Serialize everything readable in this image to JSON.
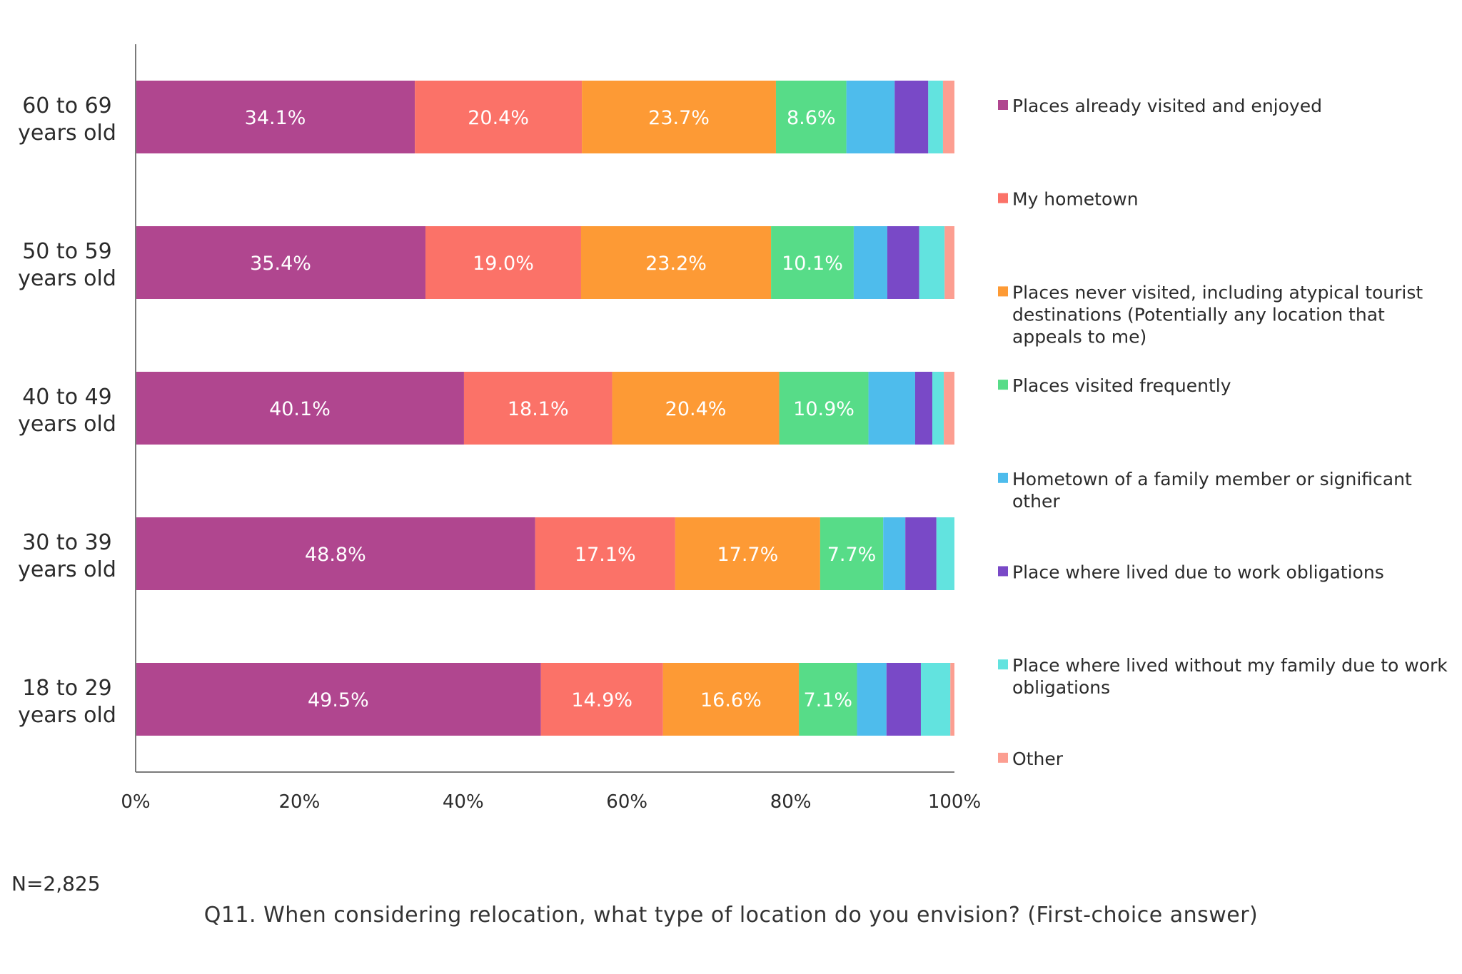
{
  "chart_data": {
    "type": "bar",
    "orientation": "horizontal",
    "stacked": true,
    "categories": [
      "60 to 69\nyears old",
      "50 to 59\nyears old",
      "40 to 49\nyears old",
      "30 to 39\nyears old",
      "18 to 29\nyears old"
    ],
    "series": [
      {
        "name": "Places already visited and enjoyed",
        "color": "#b0468f",
        "values": [
          34.1,
          35.4,
          40.1,
          48.8,
          49.5
        ],
        "labels": [
          "34.1%",
          "35.4%",
          "40.1%",
          "48.8%",
          "49.5%"
        ]
      },
      {
        "name": "My hometown",
        "color": "#fb7268",
        "values": [
          20.4,
          19.0,
          18.1,
          17.1,
          14.9
        ],
        "labels": [
          "20.4%",
          "19.0%",
          "18.1%",
          "17.1%",
          "14.9%"
        ]
      },
      {
        "name": "Places never visited, including atypical tourist destinations (Potentially any location that appeals to me)",
        "color": "#fd9a35",
        "values": [
          23.7,
          23.2,
          20.4,
          17.7,
          16.6
        ],
        "labels": [
          "23.7%",
          "23.2%",
          "20.4%",
          "17.7%",
          "16.6%"
        ]
      },
      {
        "name": "Places visited frequently",
        "color": "#57dc88",
        "values": [
          8.6,
          10.1,
          10.9,
          7.7,
          7.1
        ],
        "labels": [
          "8.6%",
          "10.1%",
          "10.9%",
          "7.7%",
          "7.1%"
        ]
      },
      {
        "name": "Hometown of a family member or significant other",
        "color": "#4ebcec",
        "values": [
          5.9,
          4.1,
          5.7,
          2.7,
          3.6
        ],
        "labels": [
          "",
          "",
          "",
          "",
          ""
        ]
      },
      {
        "name": "Place where lived due to work obligations",
        "color": "#7949c7",
        "values": [
          4.1,
          3.9,
          2.1,
          3.8,
          4.2
        ],
        "labels": [
          "",
          "",
          "",
          "",
          ""
        ]
      },
      {
        "name": "Place where lived without my family due to work obligations",
        "color": "#62e3df",
        "values": [
          1.8,
          3.1,
          1.4,
          2.2,
          3.6
        ],
        "labels": [
          "",
          "",
          "",
          "",
          ""
        ]
      },
      {
        "name": "Other",
        "color": "#fc9e91",
        "values": [
          1.4,
          1.2,
          1.3,
          0.0,
          0.5
        ],
        "labels": [
          "",
          "",
          "",
          "",
          ""
        ]
      }
    ],
    "xlim": [
      0,
      100
    ],
    "x_ticks": [
      "0%",
      "20%",
      "40%",
      "60%",
      "80%",
      "100%"
    ],
    "legend_position": "right",
    "grid": false,
    "note": "N=2,825",
    "caption": "Q11. When considering relocation, what type of location do you envision? (First-choice answer)"
  }
}
